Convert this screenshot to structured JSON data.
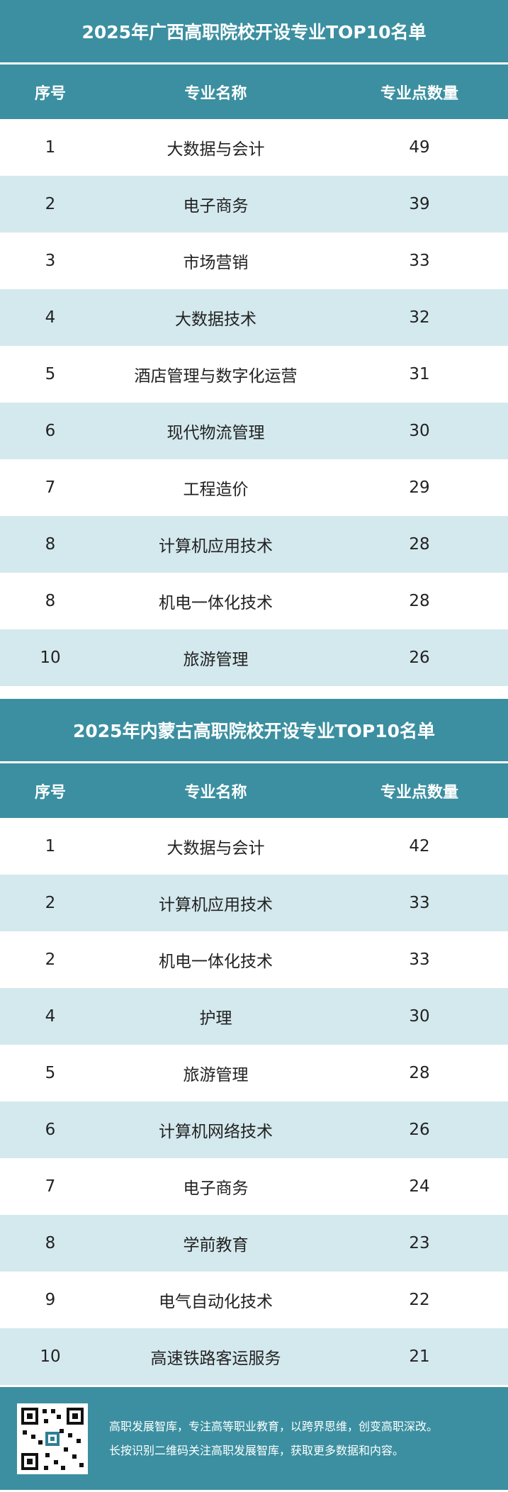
{
  "columns": {
    "index": "序号",
    "name": "专业名称",
    "count": "专业点数量"
  },
  "tables": [
    {
      "title": "2025年广西高职院校开设专业TOP10名单",
      "rows": [
        {
          "index": "1",
          "name": "大数据与会计",
          "count": "49"
        },
        {
          "index": "2",
          "name": "电子商务",
          "count": "39"
        },
        {
          "index": "3",
          "name": "市场营销",
          "count": "33"
        },
        {
          "index": "4",
          "name": "大数据技术",
          "count": "32"
        },
        {
          "index": "5",
          "name": "酒店管理与数字化运营",
          "count": "31"
        },
        {
          "index": "6",
          "name": "现代物流管理",
          "count": "30"
        },
        {
          "index": "7",
          "name": "工程造价",
          "count": "29"
        },
        {
          "index": "8",
          "name": "计算机应用技术",
          "count": "28"
        },
        {
          "index": "8",
          "name": "机电一体化技术",
          "count": "28"
        },
        {
          "index": "10",
          "name": "旅游管理",
          "count": "26"
        }
      ]
    },
    {
      "title": "2025年内蒙古高职院校开设专业TOP10名单",
      "rows": [
        {
          "index": "1",
          "name": "大数据与会计",
          "count": "42"
        },
        {
          "index": "2",
          "name": "计算机应用技术",
          "count": "33"
        },
        {
          "index": "2",
          "name": "机电一体化技术",
          "count": "33"
        },
        {
          "index": "4",
          "name": "护理",
          "count": "30"
        },
        {
          "index": "5",
          "name": "旅游管理",
          "count": "28"
        },
        {
          "index": "6",
          "name": "计算机网络技术",
          "count": "26"
        },
        {
          "index": "7",
          "name": "电子商务",
          "count": "24"
        },
        {
          "index": "8",
          "name": "学前教育",
          "count": "23"
        },
        {
          "index": "9",
          "name": "电气自动化技术",
          "count": "22"
        },
        {
          "index": "10",
          "name": "高速铁路客运服务",
          "count": "21"
        }
      ]
    }
  ],
  "footer": {
    "line1": "高职发展智库，专注高等职业教育，以跨界思维，创变高职深改。",
    "line2": "长按识别二维码关注高职发展智库，获取更多数据和内容。",
    "qr_icon": "qr-code-icon"
  },
  "colors": {
    "header": "#3b8fa0",
    "alt_row": "#d4e9ee",
    "plain_row": "#ffffff"
  }
}
